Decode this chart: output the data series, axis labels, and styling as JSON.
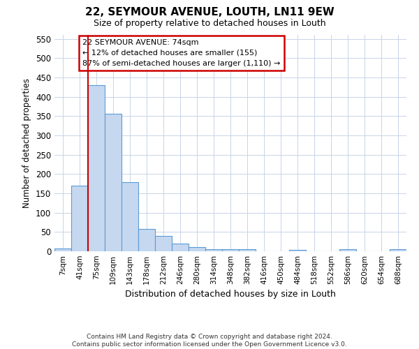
{
  "title": "22, SEYMOUR AVENUE, LOUTH, LN11 9EW",
  "subtitle": "Size of property relative to detached houses in Louth",
  "xlabel": "Distribution of detached houses by size in Louth",
  "ylabel": "Number of detached properties",
  "footnote1": "Contains HM Land Registry data © Crown copyright and database right 2024.",
  "footnote2": "Contains public sector information licensed under the Open Government Licence v3.0.",
  "annotation_title": "22 SEYMOUR AVENUE: 74sqm",
  "annotation_line1": "← 12% of detached houses are smaller (155)",
  "annotation_line2": "87% of semi-detached houses are larger (1,110) →",
  "bar_color": "#c5d8f0",
  "bar_edge_color": "#5b9bd5",
  "vline_color": "#cc0000",
  "annotation_box_color": "#cc0000",
  "categories": [
    "7sqm",
    "41sqm",
    "75sqm",
    "109sqm",
    "143sqm",
    "178sqm",
    "212sqm",
    "246sqm",
    "280sqm",
    "314sqm",
    "348sqm",
    "382sqm",
    "416sqm",
    "450sqm",
    "484sqm",
    "518sqm",
    "552sqm",
    "586sqm",
    "620sqm",
    "654sqm",
    "688sqm"
  ],
  "values": [
    8,
    170,
    430,
    356,
    178,
    57,
    40,
    20,
    11,
    6,
    5,
    5,
    0,
    0,
    3,
    0,
    0,
    5,
    0,
    0,
    5
  ],
  "vline_x": 1.5,
  "ylim": [
    0,
    560
  ],
  "yticks": [
    0,
    50,
    100,
    150,
    200,
    250,
    300,
    350,
    400,
    450,
    500,
    550
  ],
  "bg_color": "#ffffff",
  "grid_color": "#c8d4e8"
}
